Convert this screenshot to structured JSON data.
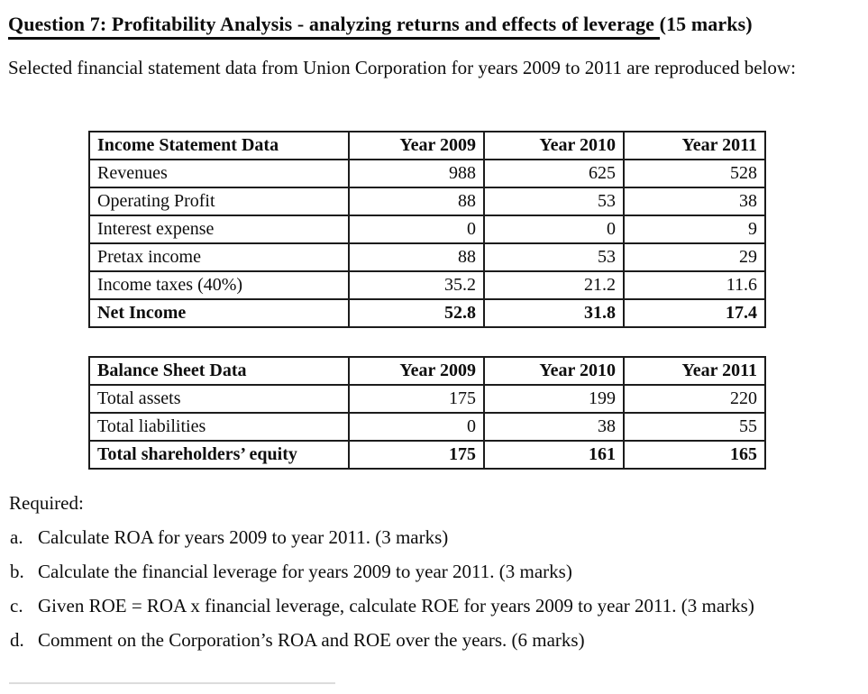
{
  "title": {
    "underlined": "Question 7: Profitability Analysis - analyzing returns and effects of leverage ",
    "marks": "(15 marks)"
  },
  "intro": "Selected financial statement data from Union Corporation for years 2009 to 2011 are reproduced below:",
  "tables": [
    {
      "header": [
        "Income Statement Data",
        "Year 2009",
        "Year 2010",
        "Year 2011"
      ],
      "rows": [
        {
          "label": "Revenues",
          "values": [
            "988",
            "625",
            "528"
          ]
        },
        {
          "label": "Operating Profit",
          "values": [
            "88",
            "53",
            "38"
          ]
        },
        {
          "label": "Interest expense",
          "values": [
            "0",
            "0",
            "9"
          ]
        },
        {
          "label": "Pretax income",
          "values": [
            "88",
            "53",
            "29"
          ]
        },
        {
          "label": "Income taxes (40%)",
          "values": [
            "35.2",
            "21.2",
            "11.6"
          ]
        },
        {
          "label": "Net Income",
          "values": [
            "52.8",
            "31.8",
            "17.4"
          ]
        }
      ]
    },
    {
      "header": [
        "Balance Sheet Data",
        "Year 2009",
        "Year 2010",
        "Year 2011"
      ],
      "rows": [
        {
          "label": "Total assets",
          "values": [
            "175",
            "199",
            "220"
          ]
        },
        {
          "label": "Total liabilities",
          "values": [
            "0",
            "38",
            "55"
          ]
        },
        {
          "label": "Total shareholders’ equity",
          "values": [
            "175",
            "161",
            "165"
          ]
        }
      ]
    }
  ],
  "required": {
    "heading": "Required:",
    "items": [
      {
        "marker": "a.",
        "text": "Calculate ROA for years 2009 to year 2011. (3 marks)"
      },
      {
        "marker": "b.",
        "text": "Calculate the financial leverage for years 2009 to year 2011. (3 marks)"
      },
      {
        "marker": "c.",
        "text": "Given ROE = ROA x financial leverage, calculate ROE for years 2009 to year 2011. (3 marks)"
      },
      {
        "marker": "d.",
        "text": "Comment on the Corporation’s ROA and ROE over the years. (6 marks)"
      }
    ]
  },
  "colors": {
    "text": "#0d0d0d",
    "background": "#ffffff",
    "table_border": "#1c1c1c"
  }
}
